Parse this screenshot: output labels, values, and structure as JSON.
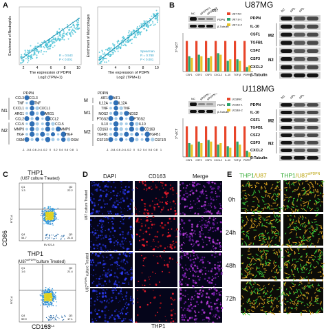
{
  "panels": {
    "A": {
      "letter": "A",
      "scatter1": {
        "xlabel": "The expression of PDPN",
        "xlabel2": "Log2 (TPM+1)",
        "ylabel": "Enrichment of Neutrophils",
        "stat1": "R = 0.543",
        "stat2": "P < 0.001",
        "xticks": [
          "2",
          "4",
          "6",
          "8",
          "10"
        ]
      },
      "scatter2": {
        "xlabel": "The expression of PDPN",
        "xlabel2": "Log2 (TPM+1)",
        "ylabel": "Enrichment of Macrophages",
        "stat0": "Spearman",
        "stat1": "R = 0.780",
        "stat2": "P < 0.001",
        "xticks": [
          "2",
          "4",
          "6",
          "8",
          "10"
        ]
      },
      "dot1": {
        "top_label": "PDPN",
        "rows": [
          "CCL3",
          "TNF",
          "CXCL1",
          "ARG1",
          "CCL2",
          "CCL5",
          "MMP9",
          "HGF",
          "OSM"
        ],
        "diag": [
          "CCL3",
          "TNF",
          "CXCL1",
          "ARG1",
          "CCL2",
          "CCL5",
          "MMP9",
          "HGF",
          "OSM"
        ],
        "groups": [
          "N1",
          "N2"
        ],
        "scale": [
          "-1",
          "-0.8",
          "-0.6",
          "-0.4",
          "-0.2",
          "0",
          "0.2",
          "0.4",
          "0.6",
          "0.8",
          "1"
        ]
      },
      "dot2": {
        "top_label": "PDPN",
        "rows": [
          "AIF1",
          "IL12A",
          "TNF",
          "NOS2",
          "PTGS2",
          "IL10",
          "CD163",
          "TGFB1",
          "CSF1R"
        ],
        "diag": [
          "AIF1",
          "IL12A",
          "TNF",
          "NOS2",
          "PTGS2",
          "IL10",
          "CD163",
          "TGFB1",
          "CSF1R"
        ],
        "groups": [
          "M",
          "M1",
          "M2"
        ],
        "scale": [
          "-1",
          "-0.8",
          "-0.6",
          "-0.4",
          "-0.2",
          "0",
          "0.2",
          "0.4",
          "0.6",
          "0.8",
          "1"
        ]
      }
    },
    "B": {
      "letter": "B",
      "u87": {
        "title": "U87MG",
        "cell_label": "U87",
        "cols": [
          "NC",
          "siPDPN-1",
          "siPDPN-2"
        ],
        "blot_labels": [
          "PDPN",
          "β-Tubulin"
        ],
        "legend": [
          "U87 NC",
          "U87 si-1",
          "U87 si-2"
        ],
        "ylabel": "2^-ΔCT",
        "cats": [
          "CSF1",
          "CSF2",
          "CSF3",
          "CXCL2",
          "IL-10",
          "TGF-β",
          "PDPN"
        ],
        "wb": {
          "rows": [
            "PDPN",
            "IL-10",
            "CSF1",
            "TGFB1",
            "CSF2",
            "CSF3",
            "CXCL2",
            "β-Tubulin"
          ],
          "groups": [
            "M2",
            "N2"
          ],
          "cols": [
            "NC",
            "siPDPN-1",
            "siPDPN-2"
          ]
        }
      },
      "u118": {
        "title": "U118MG",
        "cols": [
          "NC",
          "siPDPN-1",
          "siPDPN-2"
        ],
        "blot_labels": [
          "PDPN",
          "β-Tubulin"
        ],
        "legend": [
          "U118NC",
          "U118si-1",
          "U118si-2"
        ],
        "ylabel": "2^-ΔCT",
        "cats": [
          "CSF1",
          "CSF2",
          "CSF3",
          "CXCL2",
          "IL-10",
          "TGF-β",
          "PDPN"
        ],
        "wb": {
          "rows": [
            "PDPN",
            "IL-10",
            "CSF1",
            "TGFB1",
            "CSF2",
            "CSF3",
            "CXCL2",
            "β-Tubulin"
          ],
          "groups": [
            "M2",
            "N2"
          ],
          "cols": [
            "NC",
            "siPDPN-1",
            "siPDPN-2"
          ]
        }
      }
    },
    "C": {
      "letter": "C",
      "title1": "THP1",
      "sub1": "(U87 culture Treated)",
      "title2": "THP1",
      "sub2_a": "(U87",
      "sub2_sup": "siPDPN",
      "sub2_b": "culture Treated)",
      "ylabel": "CD86",
      "xlabel": "CD163",
      "axis_y": "FITC-A",
      "axis_x": "BV 421-A",
      "q1": {
        "q1": "Q1",
        "q1v": "1.3",
        "q2": "Q2",
        "q2v": "22.2",
        "q3": "Q3",
        "q3v": "21.8",
        "q4": "Q4",
        "q4v": "54.7"
      },
      "q2": {
        "q1": "Q1",
        "q1v": "1.6",
        "q2": "Q2",
        "q2v": "21.4",
        "q3": "Q3",
        "q3v": "17.1",
        "q4": "Q4",
        "q4v": "59.9"
      }
    },
    "D": {
      "letter": "D",
      "cols": [
        "DAPI",
        "CD163",
        "Merge"
      ],
      "row1": "U87 culture Treated",
      "row2_a": "U87",
      "row2_sup": "siPDPN",
      "row2_b": " culture Treated",
      "bottom": "THP1"
    },
    "E": {
      "letter": "E",
      "head1_a": "THP1",
      "head1_b": "/U87",
      "head2_a": "THP1",
      "head2_b": "/U87",
      "head2_sup": "siPDPN",
      "times": [
        "0h",
        "24h",
        "48h",
        "72h"
      ]
    }
  },
  "colors": {
    "scatter": "#46c1d6",
    "bar_red": "#e8452a",
    "bar_green": "#2aa36b",
    "bar_yellow": "#e8c32a",
    "dot_blue": "#2f6fb5",
    "dot_light": "#a8cde8"
  },
  "chart_data": [
    {
      "type": "bar",
      "title": "",
      "categories": [
        "CSF1",
        "CSF2",
        "CSF3",
        "CXCL2",
        "IL-10",
        "TGF-β",
        "PDPN"
      ],
      "series": [
        {
          "name": "U87 NC",
          "values": [
            1,
            1,
            1,
            1,
            1,
            1,
            1
          ]
        },
        {
          "name": "U87 si-1",
          "values": [
            0.5,
            0.55,
            0.45,
            0.6,
            0.35,
            0.4,
            0.15
          ]
        },
        {
          "name": "U87 si-2",
          "values": [
            0.45,
            0.5,
            0.5,
            0.55,
            0.4,
            0.35,
            0.2
          ]
        }
      ],
      "ylabel": "2^-ΔCT",
      "ylim": [
        0,
        1.5
      ]
    },
    {
      "type": "bar",
      "title": "",
      "categories": [
        "CSF1",
        "CSF2",
        "CSF3",
        "CXCL2",
        "IL-10",
        "TGF-β",
        "PDPN"
      ],
      "series": [
        {
          "name": "U118NC",
          "values": [
            1,
            1,
            1,
            1,
            1,
            1,
            1
          ]
        },
        {
          "name": "U118si-1",
          "values": [
            0.45,
            0.5,
            0.55,
            0.4,
            0.35,
            0.5,
            0.2
          ]
        },
        {
          "name": "U118si-2",
          "values": [
            0.4,
            0.45,
            0.5,
            0.45,
            0.3,
            0.4,
            0.15
          ]
        }
      ],
      "ylabel": "2^-ΔCT",
      "ylim": [
        0,
        1.5
      ]
    }
  ]
}
